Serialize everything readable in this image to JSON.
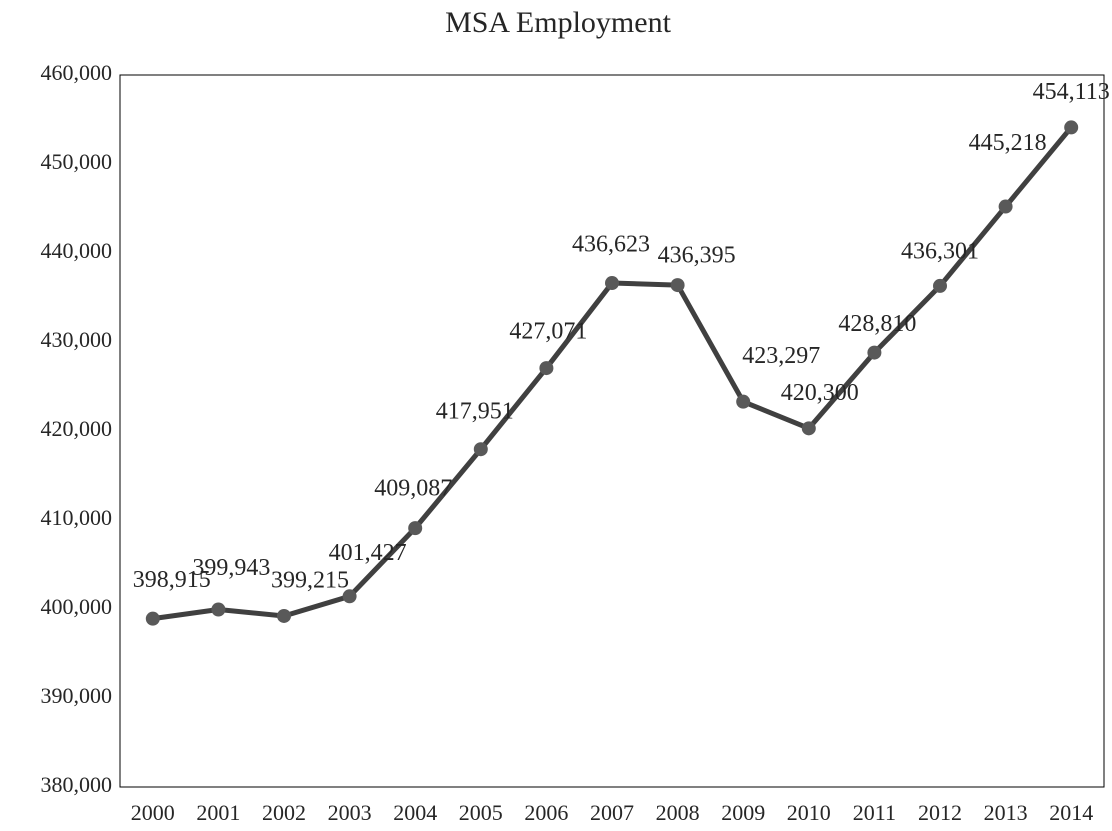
{
  "chart_data": {
    "type": "line",
    "title": "MSA Employment",
    "categories": [
      "2000",
      "2001",
      "2002",
      "2003",
      "2004",
      "2005",
      "2006",
      "2007",
      "2008",
      "2009",
      "2010",
      "2011",
      "2012",
      "2013",
      "2014"
    ],
    "series": [
      {
        "color": "#404040",
        "values": [
          398915,
          399943,
          399215,
          401427,
          409087,
          417951,
          427071,
          436623,
          436395,
          423297,
          420300,
          428810,
          436301,
          445218,
          454113
        ],
        "value_labels": [
          "398,915",
          "399,943",
          "399,215",
          "401,427",
          "409,087",
          "417,951",
          "427,071",
          "436,623",
          "436,395",
          "423,297",
          "420,300",
          "428,810",
          "436,301",
          "445,218",
          "454,113"
        ]
      }
    ],
    "ylim": [
      380000,
      460000
    ],
    "yticks": [
      {
        "value": 380000,
        "label": "380,000"
      },
      {
        "value": 390000,
        "label": "390,000"
      },
      {
        "value": 400000,
        "label": "400,000"
      },
      {
        "value": 410000,
        "label": "410,000"
      },
      {
        "value": 420000,
        "label": "420,000"
      },
      {
        "value": 430000,
        "label": "430,000"
      },
      {
        "value": 440000,
        "label": "440,000"
      },
      {
        "value": 450000,
        "label": "450,000"
      },
      {
        "value": 460000,
        "label": "460,000"
      }
    ],
    "grid": false
  }
}
